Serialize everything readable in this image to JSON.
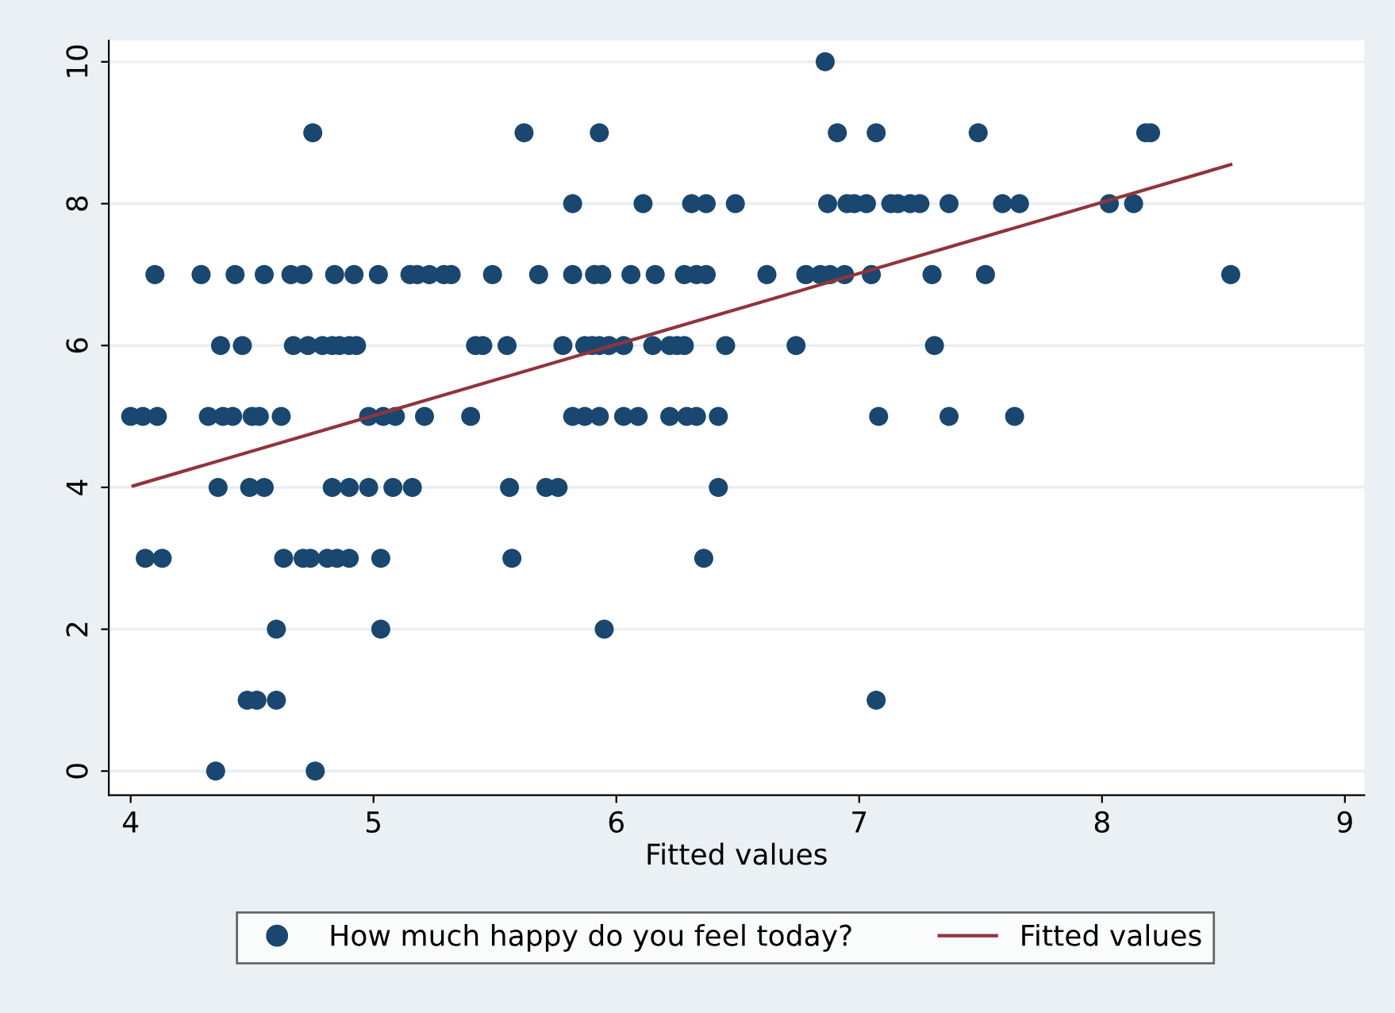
{
  "chart_data": {
    "type": "scatter",
    "xlabel": "Fitted values",
    "xlim": [
      3.91,
      9.08
    ],
    "ylim": [
      -0.34,
      10.3
    ],
    "xticks": [
      4,
      5,
      6,
      7,
      8,
      9
    ],
    "yticks": [
      0,
      2,
      4,
      6,
      8,
      10
    ],
    "grid": "y",
    "legend": "bottom",
    "marker": "circle",
    "series": [
      {
        "name": "How much happy do you feel today?",
        "color": "#1a476f",
        "x": [
          6.86,
          4.75,
          5.62,
          5.93,
          6.91,
          7.07,
          7.49,
          8.18,
          8.2,
          5.82,
          6.11,
          6.31,
          6.37,
          6.49,
          6.87,
          6.95,
          6.98,
          7.03,
          7.13,
          7.16,
          7.21,
          7.25,
          7.37,
          7.59,
          7.66,
          8.03,
          8.13,
          4.1,
          4.29,
          4.43,
          4.55,
          4.66,
          4.71,
          4.84,
          4.92,
          5.02,
          5.15,
          5.18,
          5.23,
          5.29,
          5.32,
          5.49,
          5.68,
          5.82,
          5.91,
          5.94,
          6.06,
          6.16,
          6.28,
          6.33,
          6.37,
          6.62,
          6.78,
          6.84,
          6.88,
          6.94,
          7.05,
          7.3,
          7.52,
          8.53,
          4.37,
          4.46,
          4.67,
          4.73,
          4.79,
          4.83,
          4.86,
          4.9,
          4.93,
          5.42,
          5.45,
          5.55,
          5.78,
          5.87,
          5.9,
          5.93,
          5.97,
          6.03,
          6.15,
          6.22,
          6.25,
          6.28,
          6.45,
          6.74,
          7.31,
          4.0,
          4.05,
          4.11,
          4.32,
          4.38,
          4.42,
          4.5,
          4.53,
          4.62,
          4.98,
          5.04,
          5.09,
          5.21,
          5.4,
          5.82,
          5.87,
          5.93,
          6.03,
          6.09,
          6.22,
          6.29,
          6.33,
          6.42,
          7.08,
          7.37,
          7.64,
          4.36,
          4.49,
          4.55,
          4.83,
          4.9,
          4.98,
          5.08,
          5.16,
          5.56,
          5.71,
          5.76,
          6.42,
          4.06,
          4.13,
          4.63,
          4.71,
          4.74,
          4.81,
          4.85,
          4.9,
          5.03,
          5.57,
          6.36,
          4.6,
          5.03,
          5.95,
          4.48,
          4.52,
          4.6,
          7.07,
          4.35,
          4.76
        ],
        "values": [
          10,
          9,
          9,
          9,
          9,
          9,
          9,
          9,
          9,
          8,
          8,
          8,
          8,
          8,
          8,
          8,
          8,
          8,
          8,
          8,
          8,
          8,
          8,
          8,
          8,
          8,
          8,
          7,
          7,
          7,
          7,
          7,
          7,
          7,
          7,
          7,
          7,
          7,
          7,
          7,
          7,
          7,
          7,
          7,
          7,
          7,
          7,
          7,
          7,
          7,
          7,
          7,
          7,
          7,
          7,
          7,
          7,
          7,
          7,
          7,
          6,
          6,
          6,
          6,
          6,
          6,
          6,
          6,
          6,
          6,
          6,
          6,
          6,
          6,
          6,
          6,
          6,
          6,
          6,
          6,
          6,
          6,
          6,
          6,
          6,
          5,
          5,
          5,
          5,
          5,
          5,
          5,
          5,
          5,
          5,
          5,
          5,
          5,
          5,
          5,
          5,
          5,
          5,
          5,
          5,
          5,
          5,
          5,
          5,
          5,
          5,
          4,
          4,
          4,
          4,
          4,
          4,
          4,
          4,
          4,
          4,
          4,
          4,
          3,
          3,
          3,
          3,
          3,
          3,
          3,
          3,
          3,
          3,
          3,
          2,
          2,
          2,
          1,
          1,
          1,
          1,
          0,
          0
        ]
      },
      {
        "name": "Fitted values",
        "type": "line",
        "color": "#90353b",
        "marker": "none",
        "line_style": "solid",
        "x": [
          4.01,
          8.53
        ],
        "values": [
          4.02,
          8.55
        ]
      }
    ]
  }
}
